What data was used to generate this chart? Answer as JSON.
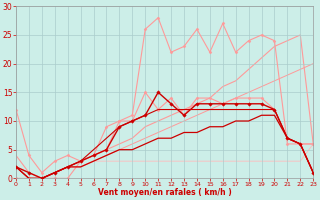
{
  "background_color": "#cceee8",
  "grid_color": "#aacccc",
  "xlabel": "Vent moyen/en rafales ( km/h )",
  "xlim": [
    0,
    23
  ],
  "ylim": [
    0,
    30
  ],
  "yticks": [
    0,
    5,
    10,
    15,
    20,
    25,
    30
  ],
  "xticks": [
    0,
    1,
    2,
    3,
    4,
    5,
    6,
    7,
    8,
    9,
    10,
    11,
    12,
    13,
    14,
    15,
    16,
    17,
    18,
    19,
    20,
    21,
    22,
    23
  ],
  "series": [
    {
      "x": [
        0,
        1,
        2,
        3,
        4,
        5,
        6,
        7,
        8,
        9,
        10,
        11,
        12,
        13,
        14,
        15,
        16,
        17,
        18,
        19,
        20,
        21,
        22,
        23
      ],
      "y": [
        0,
        0,
        0,
        0,
        0,
        3,
        4,
        9,
        10,
        11,
        26,
        28,
        22,
        23,
        26,
        22,
        27,
        22,
        24,
        25,
        24,
        6,
        6,
        6
      ],
      "color": "#ff9999",
      "marker": "D",
      "markersize": 1.5,
      "linewidth": 0.8,
      "zorder": 2
    },
    {
      "x": [
        0,
        1,
        2,
        3,
        4,
        5,
        6,
        7,
        8,
        9,
        10,
        11,
        12,
        13,
        14,
        15,
        16,
        17,
        18,
        19,
        20,
        21,
        22,
        23
      ],
      "y": [
        12,
        4,
        1,
        3,
        4,
        3,
        4,
        5,
        10,
        10,
        15,
        12,
        14,
        11,
        14,
        14,
        13,
        14,
        14,
        14,
        12,
        7,
        6,
        6
      ],
      "color": "#ff9999",
      "marker": "D",
      "markersize": 1.5,
      "linewidth": 0.8,
      "zorder": 2
    },
    {
      "x": [
        0,
        1,
        2,
        3,
        4,
        5,
        6,
        7,
        8,
        9,
        10,
        11,
        12,
        13,
        14,
        15,
        16,
        17,
        18,
        19,
        20,
        21,
        22,
        23
      ],
      "y": [
        4,
        1,
        0,
        1,
        2,
        3,
        4,
        5,
        6,
        7,
        9,
        10,
        11,
        12,
        13,
        14,
        16,
        17,
        19,
        21,
        23,
        24,
        25,
        6
      ],
      "color": "#ff9999",
      "marker": null,
      "linewidth": 0.8,
      "zorder": 1
    },
    {
      "x": [
        0,
        1,
        2,
        3,
        4,
        5,
        6,
        7,
        8,
        9,
        10,
        11,
        12,
        13,
        14,
        15,
        16,
        17,
        18,
        19,
        20,
        21,
        22,
        23
      ],
      "y": [
        2,
        0,
        0,
        1,
        2,
        2,
        3,
        4,
        5,
        6,
        7,
        8,
        9,
        10,
        11,
        12,
        13,
        14,
        15,
        16,
        17,
        18,
        19,
        20
      ],
      "color": "#ff9999",
      "marker": null,
      "linewidth": 0.7,
      "zorder": 1
    },
    {
      "x": [
        0,
        1,
        2,
        3,
        4,
        5,
        6,
        7,
        8,
        9,
        10,
        11,
        12,
        13,
        14,
        15,
        16,
        17,
        18,
        19,
        20,
        21,
        22,
        23
      ],
      "y": [
        2,
        1,
        0,
        1,
        2,
        2,
        3,
        3,
        3,
        3,
        3,
        3,
        3,
        3,
        3,
        3,
        3,
        3,
        3,
        3,
        3,
        3,
        3,
        6
      ],
      "color": "#ffbbbb",
      "marker": null,
      "linewidth": 0.6,
      "zorder": 1
    },
    {
      "x": [
        0,
        1,
        2,
        3,
        4,
        5,
        6,
        7,
        8,
        9,
        10,
        11,
        12,
        13,
        14,
        15,
        16,
        17,
        18,
        19,
        20,
        21,
        22,
        23
      ],
      "y": [
        2,
        1,
        0,
        1,
        2,
        3,
        4,
        5,
        9,
        10,
        11,
        15,
        13,
        11,
        13,
        13,
        13,
        13,
        13,
        13,
        12,
        7,
        6,
        1
      ],
      "color": "#cc0000",
      "marker": "D",
      "markersize": 1.8,
      "linewidth": 1.0,
      "zorder": 4
    },
    {
      "x": [
        0,
        1,
        2,
        3,
        4,
        5,
        6,
        7,
        8,
        9,
        10,
        11,
        12,
        13,
        14,
        15,
        16,
        17,
        18,
        19,
        20,
        21,
        22,
        23
      ],
      "y": [
        2,
        0,
        0,
        1,
        2,
        2,
        3,
        4,
        5,
        5,
        6,
        7,
        7,
        8,
        8,
        9,
        9,
        10,
        10,
        11,
        11,
        7,
        6,
        1
      ],
      "color": "#cc0000",
      "marker": null,
      "linewidth": 0.9,
      "zorder": 3
    },
    {
      "x": [
        0,
        1,
        2,
        3,
        4,
        5,
        6,
        7,
        8,
        9,
        10,
        11,
        12,
        13,
        14,
        15,
        16,
        17,
        18,
        19,
        20,
        21,
        22,
        23
      ],
      "y": [
        2,
        0,
        0,
        1,
        2,
        3,
        5,
        7,
        9,
        10,
        11,
        12,
        12,
        12,
        12,
        12,
        12,
        12,
        12,
        12,
        12,
        7,
        6,
        1
      ],
      "color": "#cc0000",
      "marker": null,
      "linewidth": 0.8,
      "zorder": 3
    }
  ]
}
